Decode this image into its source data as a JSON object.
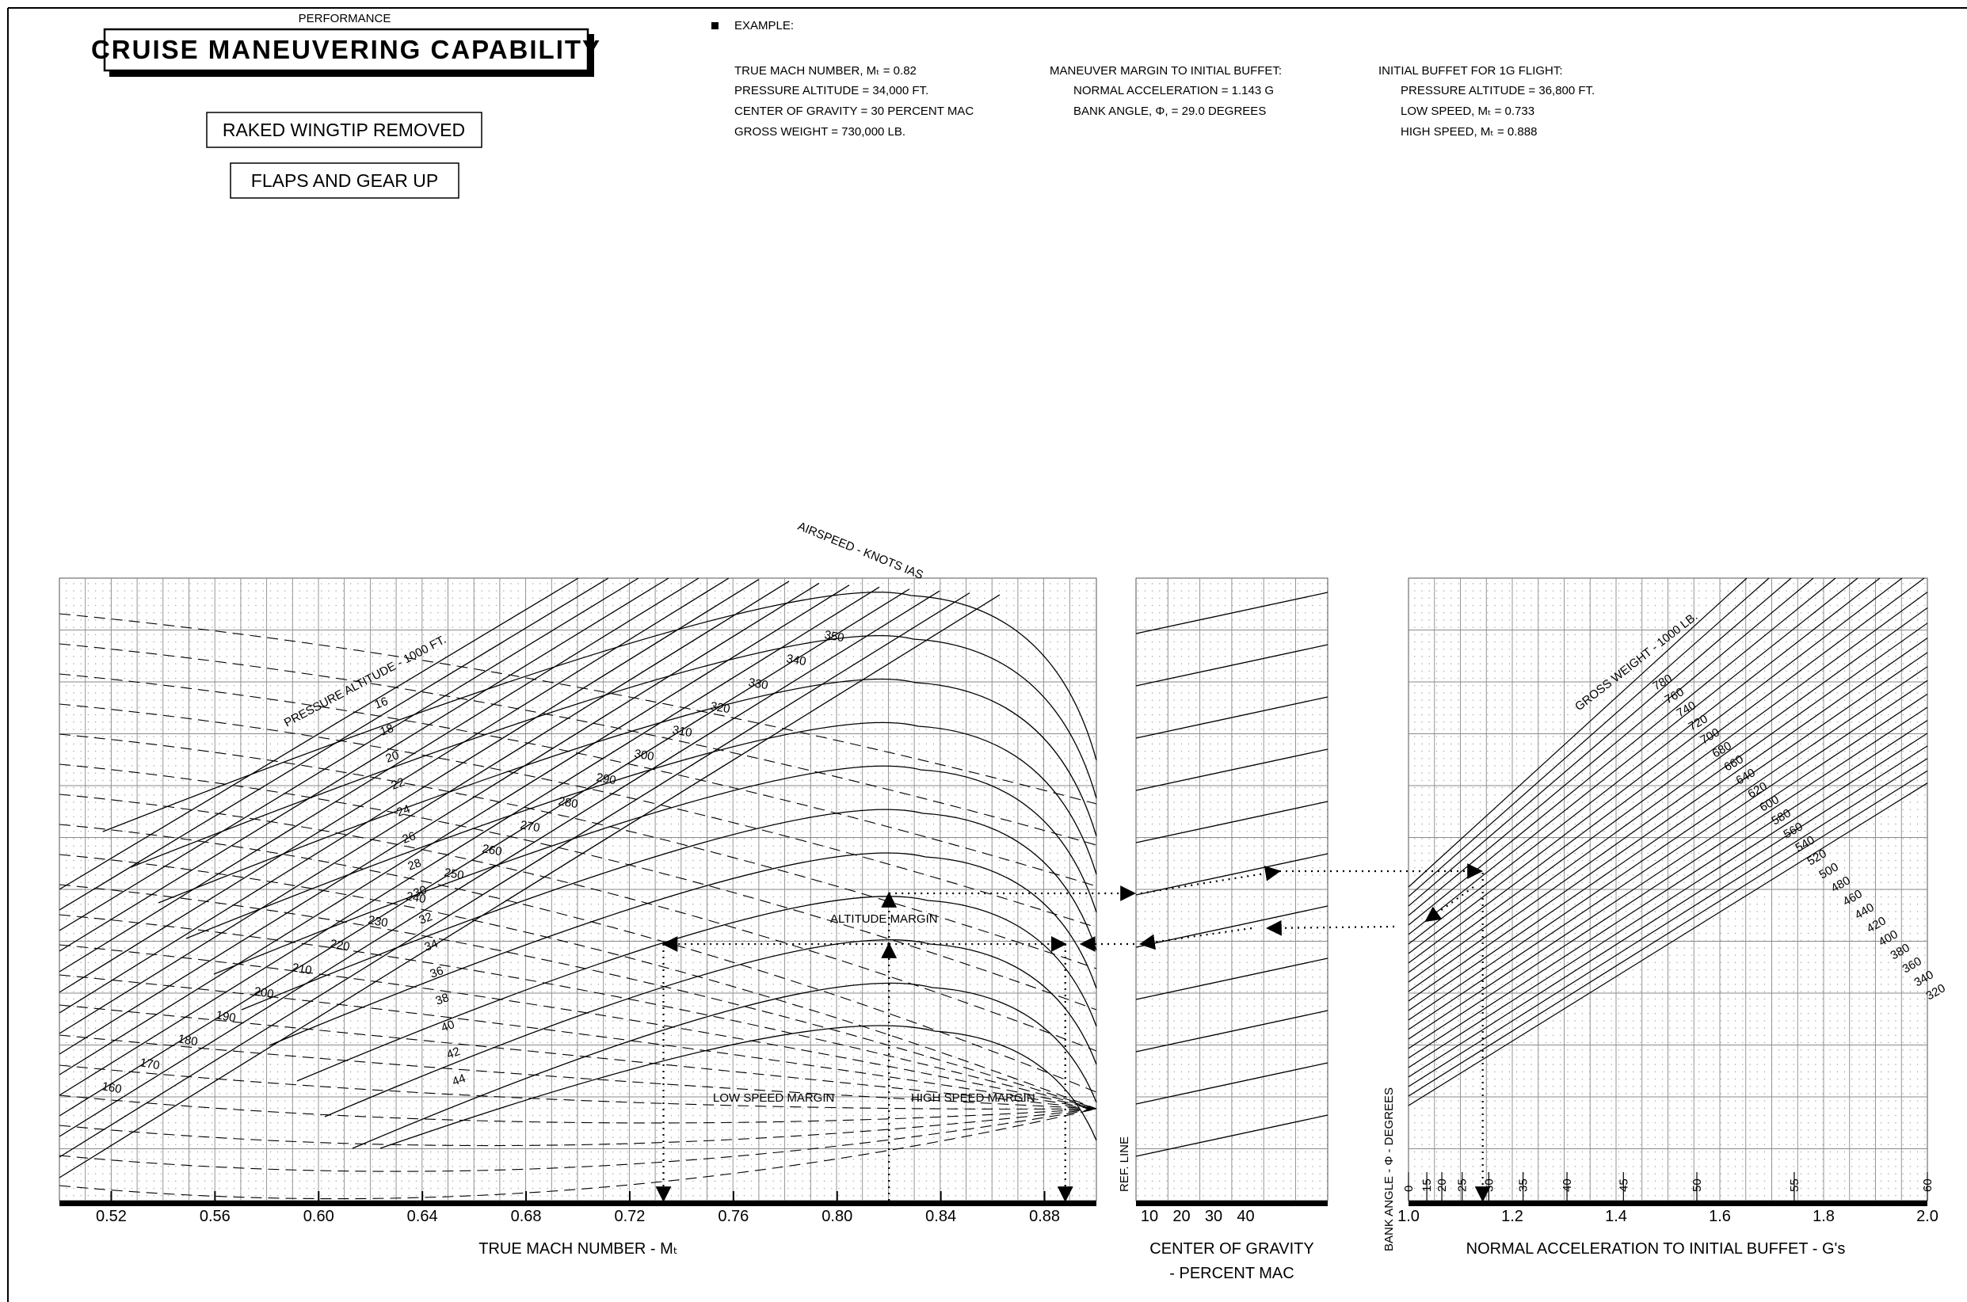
{
  "header": {
    "category": "PERFORMANCE",
    "title": "CRUISE MANEUVERING CAPABILITY",
    "config_lines": [
      "RAKED WINGTIP REMOVED",
      "FLAPS AND GEAR UP"
    ]
  },
  "example": {
    "heading": "EXAMPLE:",
    "col1": [
      "TRUE MACH NUMBER, Mₜ = 0.82",
      "PRESSURE ALTITUDE = 34,000 FT.",
      "CENTER OF GRAVITY = 30 PERCENT MAC",
      "GROSS WEIGHT = 730,000 LB."
    ],
    "col2_heading": "MANEUVER MARGIN TO INITIAL BUFFET:",
    "col2": [
      "NORMAL ACCELERATION = 1.143 G",
      "BANK ANGLE, Φ, = 29.0 DEGREES"
    ],
    "col3_heading": "INITIAL BUFFET FOR 1G FLIGHT:",
    "col3": [
      "PRESSURE ALTITUDE = 36,800 FT.",
      "LOW SPEED, Mₜ = 0.733",
      "HIGH SPEED, Mₜ = 0.888"
    ]
  },
  "chart_data": {
    "type": "line",
    "panels": {
      "mach": {
        "xlabel": "TRUE MACH NUMBER - Mₜ",
        "x_ticks": [
          "0.52",
          "0.56",
          "0.60",
          "0.64",
          "0.68",
          "0.72",
          "0.76",
          "0.80",
          "0.84",
          "0.88"
        ],
        "xlim": [
          0.5,
          0.9
        ]
      },
      "cg": {
        "xlabel": "CENTER OF GRAVITY",
        "xlabel2": "- PERCENT MAC",
        "x_ticks": [
          "10",
          "20",
          "30",
          "40"
        ],
        "ref_line_label": "REF. LINE"
      },
      "accel": {
        "xlabel": "NORMAL ACCELERATION TO INITIAL BUFFET - G's",
        "x_ticks": [
          "1.0",
          "1.2",
          "1.4",
          "1.6",
          "1.8",
          "2.0"
        ],
        "xlim": [
          1.0,
          2.0
        ],
        "bank_axis_label": "BANK ANGLE - Φ - DEGREES",
        "bank_ticks": [
          {
            "deg": "0",
            "g": 1.0
          },
          {
            "deg": "15",
            "g": 1.0353
          },
          {
            "deg": "20",
            "g": 1.0642
          },
          {
            "deg": "25",
            "g": 1.1034
          },
          {
            "deg": "30",
            "g": 1.1547
          },
          {
            "deg": "35",
            "g": 1.2208
          },
          {
            "deg": "40",
            "g": 1.3054
          },
          {
            "deg": "45",
            "g": 1.4142
          },
          {
            "deg": "50",
            "g": 1.5557
          },
          {
            "deg": "55",
            "g": 1.7434
          },
          {
            "deg": "60",
            "g": 2.0
          }
        ]
      }
    },
    "pressure_altitude_label": "PRESSURE ALTITUDE - 1000 FT.",
    "pressure_altitude_values": [
      "16",
      "18",
      "20",
      "22",
      "24",
      "26",
      "28",
      "30",
      "32",
      "34",
      "36",
      "38",
      "40",
      "42",
      "44"
    ],
    "airspeed_label": "AIRSPEED - KNOTS IAS",
    "airspeed_values": [
      "350",
      "340",
      "330",
      "320",
      "310",
      "300",
      "290",
      "280",
      "270",
      "260",
      "250",
      "240",
      "230",
      "220",
      "210",
      "200",
      "190",
      "180",
      "170",
      "160"
    ],
    "gross_weight_label": "GROSS WEIGHT - 1000 LB.",
    "gross_weight_values": [
      "780",
      "760",
      "740",
      "720",
      "700",
      "680",
      "660",
      "640",
      "620",
      "600",
      "580",
      "560",
      "540",
      "520",
      "500",
      "480",
      "460",
      "440",
      "420",
      "400",
      "380",
      "360",
      "340",
      "320"
    ],
    "annotations": [
      "ALTITUDE MARGIN",
      "LOW SPEED MARGIN",
      "HIGH SPEED MARGIN"
    ],
    "example_path": {
      "mach": 0.82,
      "altitude_kft": 34,
      "cg_percent": 30,
      "gross_weight_klb": 730,
      "buffet_g": 1.143,
      "bank_deg": 29.0,
      "buffet_altitude_kft": 36.8,
      "low_speed_mach": 0.733,
      "high_speed_mach": 0.888
    }
  }
}
